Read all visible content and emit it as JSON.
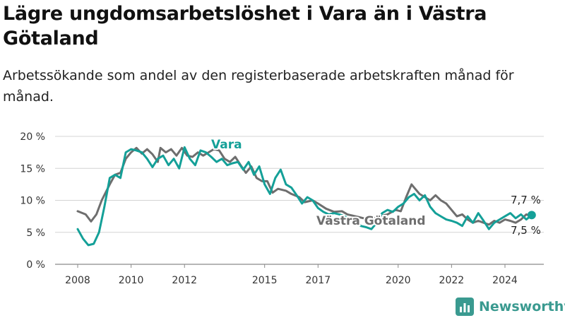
{
  "title": "Lägre ungdomsarbetslöshet i Vara än i Västra Götaland",
  "subtitle": "Arbetssökande som andel av den registerbaserade arbetskraften månad för månad.",
  "brand": "Newsworthy",
  "colors": {
    "vara": "#14a098",
    "vg": "#6e6e6e",
    "grid": "#d4d4d4",
    "brand": "#3a9a90"
  },
  "chart_data": {
    "type": "line",
    "title": "Lägre ungdomsarbetslöshet i Vara än i Västra Götaland",
    "subtitle": "Arbetssökande som andel av den registerbaserade arbetskraften månad för månad.",
    "xlabel": "",
    "ylabel": "",
    "y_unit": "%",
    "ylim": [
      0,
      20
    ],
    "xlim": [
      2008.0,
      2025.2
    ],
    "y_ticks": [
      0,
      5,
      10,
      15,
      20
    ],
    "y_tick_labels": [
      "0 %",
      "5 %",
      "10 %",
      "15 %",
      "20 %"
    ],
    "x_ticks": [
      2008,
      2010,
      2012,
      2015,
      2017,
      2020,
      2022,
      2024
    ],
    "x_tick_labels": [
      "2008",
      "2010",
      "2012",
      "2015",
      "2017",
      "2020",
      "2022",
      "2024"
    ],
    "grid": "horizontal",
    "series": [
      {
        "name": "Västra Götaland",
        "last_label": "7,5 %",
        "points": [
          [
            2008.0,
            8.3
          ],
          [
            2008.3,
            7.8
          ],
          [
            2008.5,
            6.7
          ],
          [
            2008.7,
            7.8
          ],
          [
            2008.9,
            10.0
          ],
          [
            2009.2,
            12.5
          ],
          [
            2009.4,
            14.0
          ],
          [
            2009.6,
            14.3
          ],
          [
            2009.8,
            16.5
          ],
          [
            2010.0,
            17.5
          ],
          [
            2010.2,
            18.2
          ],
          [
            2010.4,
            17.3
          ],
          [
            2010.6,
            18.0
          ],
          [
            2010.8,
            17.2
          ],
          [
            2011.0,
            16.0
          ],
          [
            2011.1,
            18.2
          ],
          [
            2011.3,
            17.5
          ],
          [
            2011.5,
            18.0
          ],
          [
            2011.7,
            17.0
          ],
          [
            2011.9,
            18.2
          ],
          [
            2012.1,
            17.0
          ],
          [
            2012.3,
            16.8
          ],
          [
            2012.5,
            17.5
          ],
          [
            2012.7,
            17.0
          ],
          [
            2012.9,
            17.5
          ],
          [
            2013.1,
            18.0
          ],
          [
            2013.3,
            17.8
          ],
          [
            2013.5,
            16.5
          ],
          [
            2013.7,
            16.0
          ],
          [
            2013.9,
            16.8
          ],
          [
            2014.1,
            15.5
          ],
          [
            2014.3,
            14.3
          ],
          [
            2014.5,
            15.3
          ],
          [
            2014.7,
            13.5
          ],
          [
            2014.9,
            13.0
          ],
          [
            2015.1,
            13.0
          ],
          [
            2015.3,
            11.2
          ],
          [
            2015.5,
            11.8
          ],
          [
            2015.8,
            11.5
          ],
          [
            2016.0,
            11.0
          ],
          [
            2016.3,
            10.5
          ],
          [
            2016.5,
            9.7
          ],
          [
            2016.8,
            10.0
          ],
          [
            2017.0,
            9.5
          ],
          [
            2017.3,
            8.7
          ],
          [
            2017.6,
            8.2
          ],
          [
            2017.9,
            8.3
          ],
          [
            2018.1,
            7.8
          ],
          [
            2018.4,
            7.5
          ],
          [
            2018.7,
            7.2
          ],
          [
            2019.0,
            7.0
          ],
          [
            2019.3,
            7.5
          ],
          [
            2019.6,
            7.8
          ],
          [
            2019.9,
            8.5
          ],
          [
            2020.1,
            8.3
          ],
          [
            2020.3,
            10.5
          ],
          [
            2020.5,
            12.5
          ],
          [
            2020.6,
            12.0
          ],
          [
            2020.8,
            11.0
          ],
          [
            2021.0,
            10.5
          ],
          [
            2021.2,
            10.0
          ],
          [
            2021.4,
            10.8
          ],
          [
            2021.6,
            10.0
          ],
          [
            2021.8,
            9.5
          ],
          [
            2022.0,
            8.5
          ],
          [
            2022.2,
            7.5
          ],
          [
            2022.4,
            7.8
          ],
          [
            2022.6,
            7.0
          ],
          [
            2022.8,
            6.5
          ],
          [
            2023.0,
            6.8
          ],
          [
            2023.2,
            6.5
          ],
          [
            2023.4,
            6.2
          ],
          [
            2023.6,
            6.8
          ],
          [
            2023.8,
            6.5
          ],
          [
            2024.0,
            7.0
          ],
          [
            2024.2,
            6.8
          ],
          [
            2024.4,
            6.5
          ],
          [
            2024.6,
            7.0
          ],
          [
            2024.8,
            7.8
          ],
          [
            2025.0,
            7.5
          ]
        ]
      },
      {
        "name": "Vara",
        "last_label": "7,7 %",
        "points": [
          [
            2008.0,
            5.5
          ],
          [
            2008.2,
            4.0
          ],
          [
            2008.4,
            3.0
          ],
          [
            2008.6,
            3.2
          ],
          [
            2008.8,
            5.0
          ],
          [
            2009.0,
            9.0
          ],
          [
            2009.2,
            13.5
          ],
          [
            2009.4,
            14.0
          ],
          [
            2009.6,
            13.5
          ],
          [
            2009.8,
            17.5
          ],
          [
            2010.0,
            18.0
          ],
          [
            2010.2,
            17.8
          ],
          [
            2010.4,
            17.5
          ],
          [
            2010.6,
            16.5
          ],
          [
            2010.8,
            15.2
          ],
          [
            2011.0,
            16.5
          ],
          [
            2011.2,
            17.0
          ],
          [
            2011.4,
            15.5
          ],
          [
            2011.6,
            16.5
          ],
          [
            2011.8,
            15.0
          ],
          [
            2012.0,
            18.3
          ],
          [
            2012.2,
            16.5
          ],
          [
            2012.4,
            15.5
          ],
          [
            2012.6,
            17.8
          ],
          [
            2012.8,
            17.5
          ],
          [
            2013.0,
            16.8
          ],
          [
            2013.2,
            16.0
          ],
          [
            2013.4,
            16.5
          ],
          [
            2013.6,
            15.5
          ],
          [
            2013.8,
            15.8
          ],
          [
            2014.0,
            16.0
          ],
          [
            2014.2,
            14.8
          ],
          [
            2014.4,
            16.0
          ],
          [
            2014.6,
            14.0
          ],
          [
            2014.8,
            15.3
          ],
          [
            2015.0,
            12.5
          ],
          [
            2015.2,
            11.0
          ],
          [
            2015.4,
            13.5
          ],
          [
            2015.6,
            14.8
          ],
          [
            2015.8,
            12.5
          ],
          [
            2016.0,
            12.0
          ],
          [
            2016.2,
            10.8
          ],
          [
            2016.4,
            9.5
          ],
          [
            2016.6,
            10.5
          ],
          [
            2016.8,
            10.0
          ],
          [
            2017.0,
            8.8
          ],
          [
            2017.2,
            8.2
          ],
          [
            2017.4,
            7.8
          ],
          [
            2017.6,
            8.0
          ],
          [
            2017.8,
            7.8
          ],
          [
            2018.0,
            7.5
          ],
          [
            2018.2,
            7.0
          ],
          [
            2018.4,
            6.8
          ],
          [
            2018.6,
            6.0
          ],
          [
            2018.8,
            5.8
          ],
          [
            2019.0,
            5.5
          ],
          [
            2019.2,
            6.5
          ],
          [
            2019.4,
            8.0
          ],
          [
            2019.6,
            8.5
          ],
          [
            2019.8,
            8.2
          ],
          [
            2020.0,
            9.0
          ],
          [
            2020.2,
            9.5
          ],
          [
            2020.4,
            10.5
          ],
          [
            2020.6,
            11.0
          ],
          [
            2020.8,
            10.0
          ],
          [
            2021.0,
            10.8
          ],
          [
            2021.2,
            9.0
          ],
          [
            2021.4,
            8.0
          ],
          [
            2021.6,
            7.5
          ],
          [
            2021.8,
            7.0
          ],
          [
            2022.0,
            6.8
          ],
          [
            2022.2,
            6.5
          ],
          [
            2022.4,
            6.0
          ],
          [
            2022.6,
            7.5
          ],
          [
            2022.8,
            6.5
          ],
          [
            2023.0,
            8.0
          ],
          [
            2023.2,
            6.8
          ],
          [
            2023.4,
            5.5
          ],
          [
            2023.6,
            6.5
          ],
          [
            2023.8,
            7.0
          ],
          [
            2024.0,
            7.5
          ],
          [
            2024.2,
            8.0
          ],
          [
            2024.4,
            7.2
          ],
          [
            2024.6,
            7.8
          ],
          [
            2024.8,
            7.0
          ],
          [
            2025.0,
            7.7
          ]
        ]
      }
    ]
  }
}
